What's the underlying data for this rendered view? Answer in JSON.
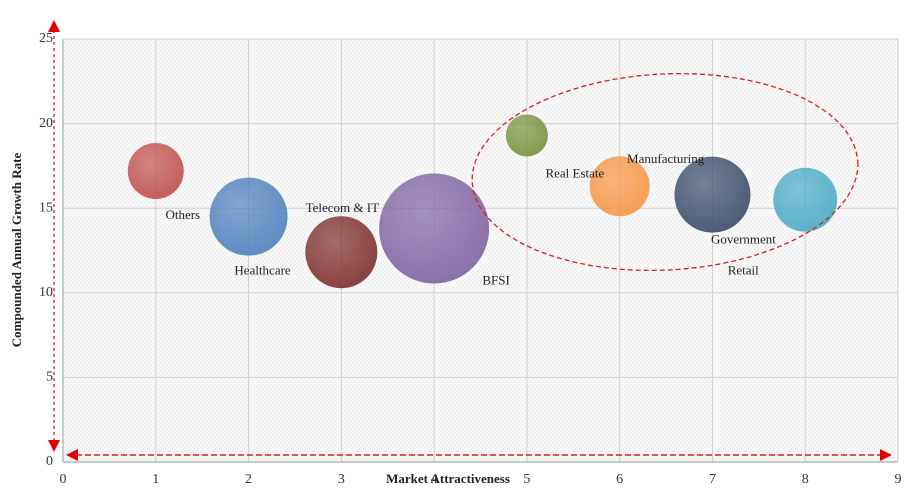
{
  "chart_data": {
    "type": "bubble",
    "x_label": "Market Attractiveness",
    "y_label": "Compounded Annual Growth Rate",
    "xlim": [
      0,
      9
    ],
    "xticks": [
      0,
      1,
      2,
      3,
      4,
      5,
      6,
      7,
      8,
      9
    ],
    "ylim": [
      0,
      25
    ],
    "yticks": [
      0,
      5,
      10,
      15,
      20,
      25
    ],
    "grid": true,
    "series": [
      {
        "name": "Others",
        "color": "#c0504d",
        "x": 1,
        "y": 17.2,
        "size": 28
      },
      {
        "name": "Healthcare",
        "color": "#4f81bd",
        "x": 2,
        "y": 14.5,
        "size": 39
      },
      {
        "name": "Telecom & IT",
        "color": "#7f2f2c",
        "x": 3,
        "y": 12.4,
        "size": 36
      },
      {
        "name": "BFSI",
        "color": "#8064a2",
        "x": 4,
        "y": 13.8,
        "size": 55
      },
      {
        "name": "Real Estate",
        "color": "#77933c",
        "x": 5,
        "y": 19.3,
        "size": 21
      },
      {
        "name": "Manufacturing",
        "color": "#f79646",
        "x": 6,
        "y": 16.3,
        "size": 30
      },
      {
        "name": "Government",
        "color": "#3c4d6b",
        "x": 7,
        "y": 15.8,
        "size": 38
      },
      {
        "name": "Retail",
        "color": "#4bacc6",
        "x": 8,
        "y": 15.5,
        "size": 32
      }
    ]
  }
}
